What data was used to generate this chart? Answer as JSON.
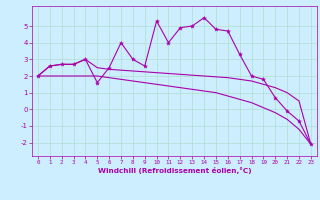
{
  "xlabel": "Windchill (Refroidissement éolien,°C)",
  "bg_color": "#cceeff",
  "grid_color": "#aaddcc",
  "line_color": "#aa00aa",
  "x_hours": [
    0,
    1,
    2,
    3,
    4,
    5,
    6,
    7,
    8,
    9,
    10,
    11,
    12,
    13,
    14,
    15,
    16,
    17,
    18,
    19,
    20,
    21,
    22,
    23
  ],
  "windchill": [
    2.0,
    2.6,
    2.7,
    2.7,
    3.0,
    1.6,
    2.5,
    4.0,
    3.0,
    2.6,
    5.3,
    4.0,
    4.9,
    5.0,
    5.5,
    4.8,
    4.7,
    3.3,
    2.0,
    1.8,
    0.7,
    -0.1,
    -0.7,
    -2.1
  ],
  "line_flat": [
    2.0,
    2.6,
    2.7,
    2.7,
    3.0,
    2.5,
    2.4,
    2.35,
    2.3,
    2.25,
    2.2,
    2.15,
    2.1,
    2.05,
    2.0,
    1.95,
    1.9,
    1.8,
    1.7,
    1.5,
    1.3,
    1.0,
    0.5,
    -2.1
  ],
  "line_diag": [
    2.0,
    2.0,
    2.0,
    2.0,
    2.0,
    2.0,
    1.9,
    1.8,
    1.7,
    1.6,
    1.5,
    1.4,
    1.3,
    1.2,
    1.1,
    1.0,
    0.8,
    0.6,
    0.4,
    0.1,
    -0.2,
    -0.6,
    -1.2,
    -2.1
  ],
  "ylim": [
    -2.8,
    6.2
  ],
  "xlim": [
    -0.5,
    23.5
  ],
  "yticks": [
    -2,
    -1,
    0,
    1,
    2,
    3,
    4,
    5
  ],
  "xticks": [
    0,
    1,
    2,
    3,
    4,
    5,
    6,
    7,
    8,
    9,
    10,
    11,
    12,
    13,
    14,
    15,
    16,
    17,
    18,
    19,
    20,
    21,
    22,
    23
  ]
}
